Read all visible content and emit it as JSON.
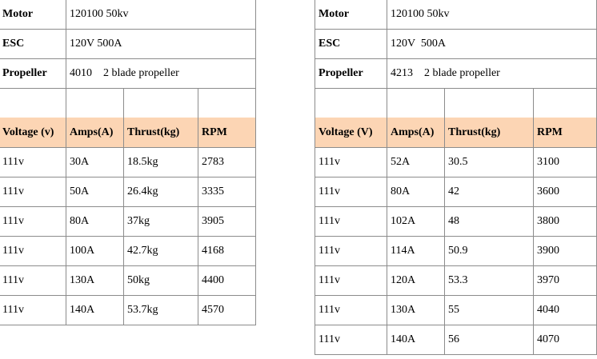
{
  "tables": [
    {
      "info": [
        [
          "Motor",
          "120100 50kv"
        ],
        [
          "ESC",
          "120V 500A"
        ],
        [
          "Propeller",
          "4010    2 blade propeller"
        ]
      ],
      "header": [
        "Voltage (v)",
        "Amps(A)",
        "Thrust(kg)",
        "RPM"
      ],
      "rows": [
        [
          "111v",
          "30A",
          "18.5kg",
          "2783"
        ],
        [
          "111v",
          "50A",
          "26.4kg",
          "3335"
        ],
        [
          "111v",
          "80A",
          "37kg",
          "3905"
        ],
        [
          "111v",
          "100A",
          "42.7kg",
          "4168"
        ],
        [
          "111v",
          "130A",
          "50kg",
          "4400"
        ],
        [
          "111v",
          "140A",
          "53.7kg",
          "4570"
        ]
      ]
    },
    {
      "info": [
        [
          "Motor",
          "120100 50kv"
        ],
        [
          "ESC",
          "120V  500A"
        ],
        [
          "Propeller",
          "4213    2 blade propeller"
        ]
      ],
      "header": [
        "Voltage (V)",
        "Amps(A)",
        "Thrust(kg)",
        "RPM"
      ],
      "rows": [
        [
          "111v",
          "52A",
          "30.5",
          "3100"
        ],
        [
          "111v",
          "80A",
          "42",
          "3600"
        ],
        [
          "111v",
          "102A",
          "48",
          "3800"
        ],
        [
          "111v",
          "114A",
          "50.9",
          "3900"
        ],
        [
          "111v",
          "120A",
          "53.3",
          "3970"
        ],
        [
          "111v",
          "130A",
          "55",
          "4040"
        ],
        [
          "111v",
          "140A",
          "56",
          "4070"
        ]
      ]
    }
  ]
}
